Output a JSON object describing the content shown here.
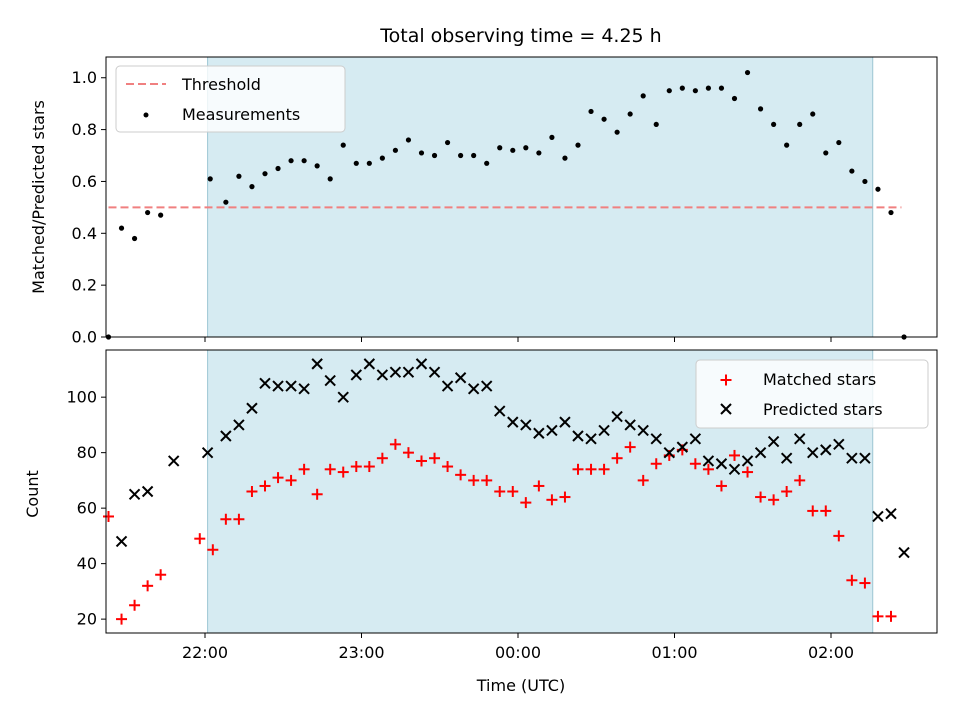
{
  "chart_data": [
    {
      "type": "scatter",
      "title": "Total observing time = 4.25 h",
      "xlabel": "",
      "ylabel": "Matched/Predicted stars",
      "ylim": [
        0,
        1.08
      ],
      "yticks": [
        "0.0",
        "0.2",
        "0.4",
        "0.6",
        "0.8",
        "1.0"
      ],
      "shaded_interval": [
        "22:01",
        "02:16"
      ],
      "threshold": {
        "name": "Threshold",
        "value": 0.5,
        "x_start": "21:23",
        "x_end": "02:27",
        "color": "#f08080"
      },
      "series": [
        {
          "name": "Measurements",
          "color": "#000000",
          "points": [
            [
              "21:23",
              0.0
            ],
            [
              "21:28",
              0.42
            ],
            [
              "21:33",
              0.38
            ],
            [
              "21:38",
              0.48
            ],
            [
              "21:43",
              0.47
            ],
            [
              "22:02",
              0.61
            ],
            [
              "22:08",
              0.52
            ],
            [
              "22:13",
              0.62
            ],
            [
              "22:18",
              0.58
            ],
            [
              "22:23",
              0.63
            ],
            [
              "22:28",
              0.65
            ],
            [
              "22:33",
              0.68
            ],
            [
              "22:38",
              0.68
            ],
            [
              "22:43",
              0.66
            ],
            [
              "22:48",
              0.61
            ],
            [
              "22:53",
              0.74
            ],
            [
              "22:58",
              0.67
            ],
            [
              "23:03",
              0.67
            ],
            [
              "23:08",
              0.69
            ],
            [
              "23:13",
              0.72
            ],
            [
              "23:18",
              0.76
            ],
            [
              "23:23",
              0.71
            ],
            [
              "23:28",
              0.7
            ],
            [
              "23:33",
              0.75
            ],
            [
              "23:38",
              0.7
            ],
            [
              "23:43",
              0.7
            ],
            [
              "23:48",
              0.67
            ],
            [
              "23:53",
              0.73
            ],
            [
              "23:58",
              0.72
            ],
            [
              "00:03",
              0.73
            ],
            [
              "00:08",
              0.71
            ],
            [
              "00:13",
              0.77
            ],
            [
              "00:18",
              0.69
            ],
            [
              "00:23",
              0.74
            ],
            [
              "00:28",
              0.87
            ],
            [
              "00:33",
              0.84
            ],
            [
              "00:38",
              0.79
            ],
            [
              "00:43",
              0.86
            ],
            [
              "00:48",
              0.93
            ],
            [
              "00:53",
              0.82
            ],
            [
              "00:58",
              0.95
            ],
            [
              "01:03",
              0.96
            ],
            [
              "01:08",
              0.95
            ],
            [
              "01:13",
              0.96
            ],
            [
              "01:18",
              0.96
            ],
            [
              "01:23",
              0.92
            ],
            [
              "01:28",
              1.02
            ],
            [
              "01:33",
              0.88
            ],
            [
              "01:38",
              0.82
            ],
            [
              "01:43",
              0.74
            ],
            [
              "01:48",
              0.82
            ],
            [
              "01:53",
              0.86
            ],
            [
              "01:58",
              0.71
            ],
            [
              "02:03",
              0.75
            ],
            [
              "02:08",
              0.64
            ],
            [
              "02:13",
              0.6
            ],
            [
              "02:18",
              0.57
            ],
            [
              "02:23",
              0.48
            ],
            [
              "02:28",
              0.0
            ]
          ]
        }
      ]
    },
    {
      "type": "scatter",
      "title": "",
      "xlabel": "Time (UTC)",
      "ylabel": "Count",
      "ylim": [
        15,
        117
      ],
      "yticks": [
        "20",
        "40",
        "60",
        "80",
        "100"
      ],
      "xticks": [
        "22:00",
        "23:00",
        "00:00",
        "01:00",
        "02:00"
      ],
      "shaded_interval": [
        "22:01",
        "02:16"
      ],
      "series": [
        {
          "name": "Matched stars",
          "color": "#ff0000",
          "marker": "+",
          "points": [
            [
              "21:23",
              57
            ],
            [
              "21:28",
              20
            ],
            [
              "21:33",
              25
            ],
            [
              "21:38",
              32
            ],
            [
              "21:43",
              36
            ],
            [
              "21:58",
              49
            ],
            [
              "22:03",
              45
            ],
            [
              "22:08",
              56
            ],
            [
              "22:13",
              56
            ],
            [
              "22:18",
              66
            ],
            [
              "22:23",
              68
            ],
            [
              "22:28",
              71
            ],
            [
              "22:33",
              70
            ],
            [
              "22:38",
              74
            ],
            [
              "22:43",
              65
            ],
            [
              "22:48",
              74
            ],
            [
              "22:53",
              73
            ],
            [
              "22:58",
              75
            ],
            [
              "23:03",
              75
            ],
            [
              "23:08",
              78
            ],
            [
              "23:13",
              83
            ],
            [
              "23:18",
              80
            ],
            [
              "23:23",
              77
            ],
            [
              "23:28",
              78
            ],
            [
              "23:33",
              75
            ],
            [
              "23:38",
              72
            ],
            [
              "23:43",
              70
            ],
            [
              "23:48",
              70
            ],
            [
              "23:53",
              66
            ],
            [
              "23:58",
              66
            ],
            [
              "00:03",
              62
            ],
            [
              "00:08",
              68
            ],
            [
              "00:13",
              63
            ],
            [
              "00:18",
              64
            ],
            [
              "00:23",
              74
            ],
            [
              "00:28",
              74
            ],
            [
              "00:33",
              74
            ],
            [
              "00:38",
              78
            ],
            [
              "00:43",
              82
            ],
            [
              "00:48",
              70
            ],
            [
              "00:53",
              76
            ],
            [
              "00:58",
              79
            ],
            [
              "01:03",
              81
            ],
            [
              "01:08",
              76
            ],
            [
              "01:13",
              74
            ],
            [
              "01:18",
              68
            ],
            [
              "01:23",
              79
            ],
            [
              "01:28",
              73
            ],
            [
              "01:33",
              64
            ],
            [
              "01:38",
              63
            ],
            [
              "01:43",
              66
            ],
            [
              "01:48",
              70
            ],
            [
              "01:53",
              59
            ],
            [
              "01:58",
              59
            ],
            [
              "02:03",
              50
            ],
            [
              "02:08",
              34
            ],
            [
              "02:13",
              33
            ],
            [
              "02:18",
              21
            ],
            [
              "02:23",
              21
            ]
          ]
        },
        {
          "name": "Predicted stars",
          "color": "#000000",
          "marker": "x",
          "points": [
            [
              "21:28",
              48
            ],
            [
              "21:33",
              65
            ],
            [
              "21:38",
              66
            ],
            [
              "21:48",
              77
            ],
            [
              "22:01",
              80
            ],
            [
              "22:08",
              86
            ],
            [
              "22:13",
              90
            ],
            [
              "22:18",
              96
            ],
            [
              "22:23",
              105
            ],
            [
              "22:28",
              104
            ],
            [
              "22:33",
              104
            ],
            [
              "22:38",
              103
            ],
            [
              "22:43",
              112
            ],
            [
              "22:48",
              106
            ],
            [
              "22:53",
              100
            ],
            [
              "22:58",
              108
            ],
            [
              "23:03",
              112
            ],
            [
              "23:08",
              108
            ],
            [
              "23:13",
              109
            ],
            [
              "23:18",
              109
            ],
            [
              "23:23",
              112
            ],
            [
              "23:28",
              109
            ],
            [
              "23:33",
              104
            ],
            [
              "23:38",
              107
            ],
            [
              "23:43",
              103
            ],
            [
              "23:48",
              104
            ],
            [
              "23:53",
              95
            ],
            [
              "23:58",
              91
            ],
            [
              "00:03",
              90
            ],
            [
              "00:08",
              87
            ],
            [
              "00:13",
              88
            ],
            [
              "00:18",
              91
            ],
            [
              "00:23",
              86
            ],
            [
              "00:28",
              85
            ],
            [
              "00:33",
              88
            ],
            [
              "00:38",
              93
            ],
            [
              "00:43",
              90
            ],
            [
              "00:48",
              88
            ],
            [
              "00:53",
              85
            ],
            [
              "00:58",
              80
            ],
            [
              "01:03",
              82
            ],
            [
              "01:08",
              85
            ],
            [
              "01:13",
              77
            ],
            [
              "01:18",
              76
            ],
            [
              "01:23",
              74
            ],
            [
              "01:28",
              77
            ],
            [
              "01:33",
              80
            ],
            [
              "01:38",
              84
            ],
            [
              "01:43",
              78
            ],
            [
              "01:48",
              85
            ],
            [
              "01:53",
              80
            ],
            [
              "01:58",
              81
            ],
            [
              "02:03",
              83
            ],
            [
              "02:08",
              78
            ],
            [
              "02:13",
              78
            ],
            [
              "02:18",
              57
            ],
            [
              "02:23",
              58
            ],
            [
              "02:28",
              44
            ]
          ]
        }
      ]
    }
  ]
}
